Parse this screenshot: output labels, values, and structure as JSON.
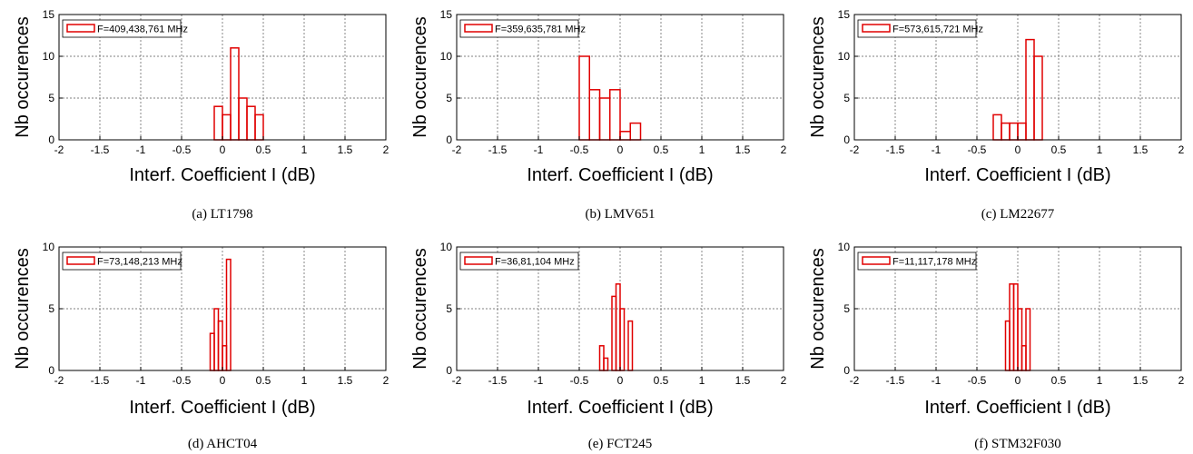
{
  "chart_data": [
    {
      "type": "bar",
      "caption": "(a)  LT1798",
      "legend": "F=409,438,761 MHz",
      "xlabel": "Interf. Coefficient I (dB)",
      "ylabel": "Nb occurences",
      "xlim": [
        -2,
        2
      ],
      "ylim": [
        0,
        15
      ],
      "xticks": [
        "-2",
        "-1.5",
        "-1",
        "-0.5",
        "0",
        "0.5",
        "1",
        "1.5",
        "2"
      ],
      "yticks": [
        "0",
        "5",
        "10",
        "15"
      ],
      "bin_width": 0.1,
      "bins": [
        {
          "x": -0.05,
          "y": 4
        },
        {
          "x": 0.05,
          "y": 3
        },
        {
          "x": 0.15,
          "y": 11
        },
        {
          "x": 0.25,
          "y": 5
        },
        {
          "x": 0.35,
          "y": 4
        },
        {
          "x": 0.45,
          "y": 3
        }
      ],
      "color": "#e00000"
    },
    {
      "type": "bar",
      "caption": "(b) LMV651",
      "legend": "F=359,635,781 MHz",
      "xlabel": "Interf. Coefficient I (dB)",
      "ylabel": "Nb occurences",
      "xlim": [
        -2,
        2
      ],
      "ylim": [
        0,
        15
      ],
      "xticks": [
        "-2",
        "-1.5",
        "-1",
        "-0.5",
        "0",
        "0.5",
        "1",
        "1.5",
        "2"
      ],
      "yticks": [
        "0",
        "5",
        "10",
        "15"
      ],
      "bin_width": 0.125,
      "bins": [
        {
          "x": -0.4375,
          "y": 10
        },
        {
          "x": -0.3125,
          "y": 6
        },
        {
          "x": -0.1875,
          "y": 5
        },
        {
          "x": -0.0625,
          "y": 6
        },
        {
          "x": 0.0625,
          "y": 1
        },
        {
          "x": 0.1875,
          "y": 2
        }
      ],
      "color": "#e00000"
    },
    {
      "type": "bar",
      "caption": "(c) LM22677",
      "legend": "F=573,615,721 MHz",
      "xlabel": "Interf. Coefficient I (dB)",
      "ylabel": "Nb occurences",
      "xlim": [
        -2,
        2
      ],
      "ylim": [
        0,
        15
      ],
      "xticks": [
        "-2",
        "-1.5",
        "-1",
        "-0.5",
        "0",
        "0.5",
        "1",
        "1.5",
        "2"
      ],
      "yticks": [
        "0",
        "5",
        "10",
        "15"
      ],
      "bin_width": 0.1,
      "bins": [
        {
          "x": -0.25,
          "y": 3
        },
        {
          "x": -0.15,
          "y": 2
        },
        {
          "x": -0.05,
          "y": 2
        },
        {
          "x": 0.05,
          "y": 2
        },
        {
          "x": 0.15,
          "y": 12
        },
        {
          "x": 0.25,
          "y": 10
        }
      ],
      "color": "#e00000"
    },
    {
      "type": "bar",
      "caption": "(d)  AHCT04",
      "legend": "F=73,148,213 MHz",
      "xlabel": "Interf. Coefficient I (dB)",
      "ylabel": "Nb occurences",
      "xlim": [
        -2,
        2
      ],
      "ylim": [
        0,
        10
      ],
      "xticks": [
        "-2",
        "-1.5",
        "-1",
        "-0.5",
        "0",
        "0.5",
        "1",
        "1.5",
        "2"
      ],
      "yticks": [
        "0",
        "5",
        "10"
      ],
      "bin_width": 0.05,
      "bins": [
        {
          "x": -0.125,
          "y": 3
        },
        {
          "x": -0.075,
          "y": 5
        },
        {
          "x": -0.025,
          "y": 4
        },
        {
          "x": 0.025,
          "y": 2
        },
        {
          "x": 0.075,
          "y": 9
        }
      ],
      "color": "#e00000"
    },
    {
      "type": "bar",
      "caption": "(e) FCT245",
      "legend": "F=36,81,104 MHz",
      "xlabel": "Interf. Coefficient I (dB)",
      "ylabel": "Nb occurences",
      "xlim": [
        -2,
        2
      ],
      "ylim": [
        0,
        10
      ],
      "xticks": [
        "-2",
        "-1.5",
        "-1",
        "-0.5",
        "0",
        "0.5",
        "1",
        "1.5",
        "2"
      ],
      "yticks": [
        "0",
        "5",
        "10"
      ],
      "bin_width": 0.05,
      "bins": [
        {
          "x": -0.225,
          "y": 2
        },
        {
          "x": -0.175,
          "y": 1
        },
        {
          "x": -0.075,
          "y": 6
        },
        {
          "x": -0.025,
          "y": 7
        },
        {
          "x": 0.025,
          "y": 5
        },
        {
          "x": 0.125,
          "y": 4
        }
      ],
      "color": "#e00000"
    },
    {
      "type": "bar",
      "caption": "(f) STM32F030",
      "legend": "F=11,117,178 MHz",
      "xlabel": "Interf. Coefficient I (dB)",
      "ylabel": "Nb occurences",
      "xlim": [
        -2,
        2
      ],
      "ylim": [
        0,
        10
      ],
      "xticks": [
        "-2",
        "-1.5",
        "-1",
        "-0.5",
        "0",
        "0.5",
        "1",
        "1.5",
        "2"
      ],
      "yticks": [
        "0",
        "5",
        "10"
      ],
      "bin_width": 0.05,
      "bins": [
        {
          "x": -0.125,
          "y": 4
        },
        {
          "x": -0.075,
          "y": 7
        },
        {
          "x": -0.025,
          "y": 7
        },
        {
          "x": 0.025,
          "y": 5
        },
        {
          "x": 0.075,
          "y": 2
        },
        {
          "x": 0.125,
          "y": 5
        }
      ],
      "color": "#e00000"
    }
  ]
}
